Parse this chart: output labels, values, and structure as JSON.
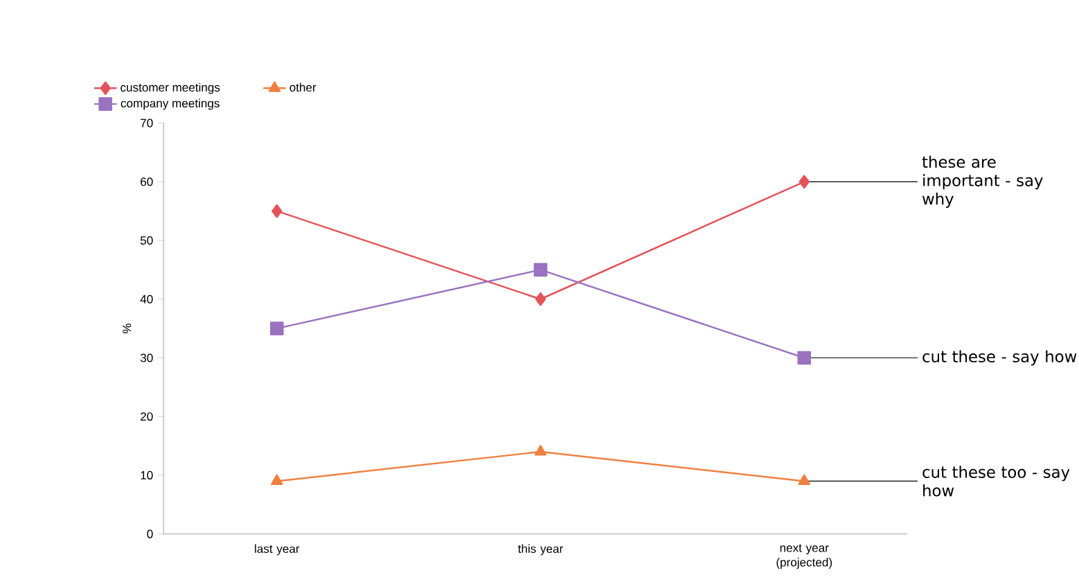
{
  "chart_data": {
    "type": "line",
    "ylabel": "%",
    "categories": [
      "last year",
      "this year",
      "next year (projected)"
    ],
    "series": [
      {
        "name": "customer meetings",
        "color": "#e5535a",
        "marker": "diamond",
        "values": [
          55,
          40,
          60
        ]
      },
      {
        "name": "other",
        "color": "#f08040",
        "marker": "triangle",
        "values": [
          9,
          14,
          9
        ]
      },
      {
        "name": "company meetings",
        "color": "#9a72c0",
        "marker": "square",
        "values": [
          35,
          45,
          30
        ]
      }
    ],
    "ylim": [
      0,
      70
    ],
    "yticks": [
      0,
      10,
      20,
      30,
      40,
      50,
      60,
      70
    ],
    "legend": "top left",
    "grid": false,
    "annotations": [
      {
        "text": "these are important - say why",
        "x": "next year (projected)",
        "y": 60
      },
      {
        "text": "cut these - say how",
        "x": "next year (projected)",
        "y": 30
      },
      {
        "text": "cut these too - say how",
        "x": "next year (projected)",
        "y": 9
      }
    ]
  }
}
